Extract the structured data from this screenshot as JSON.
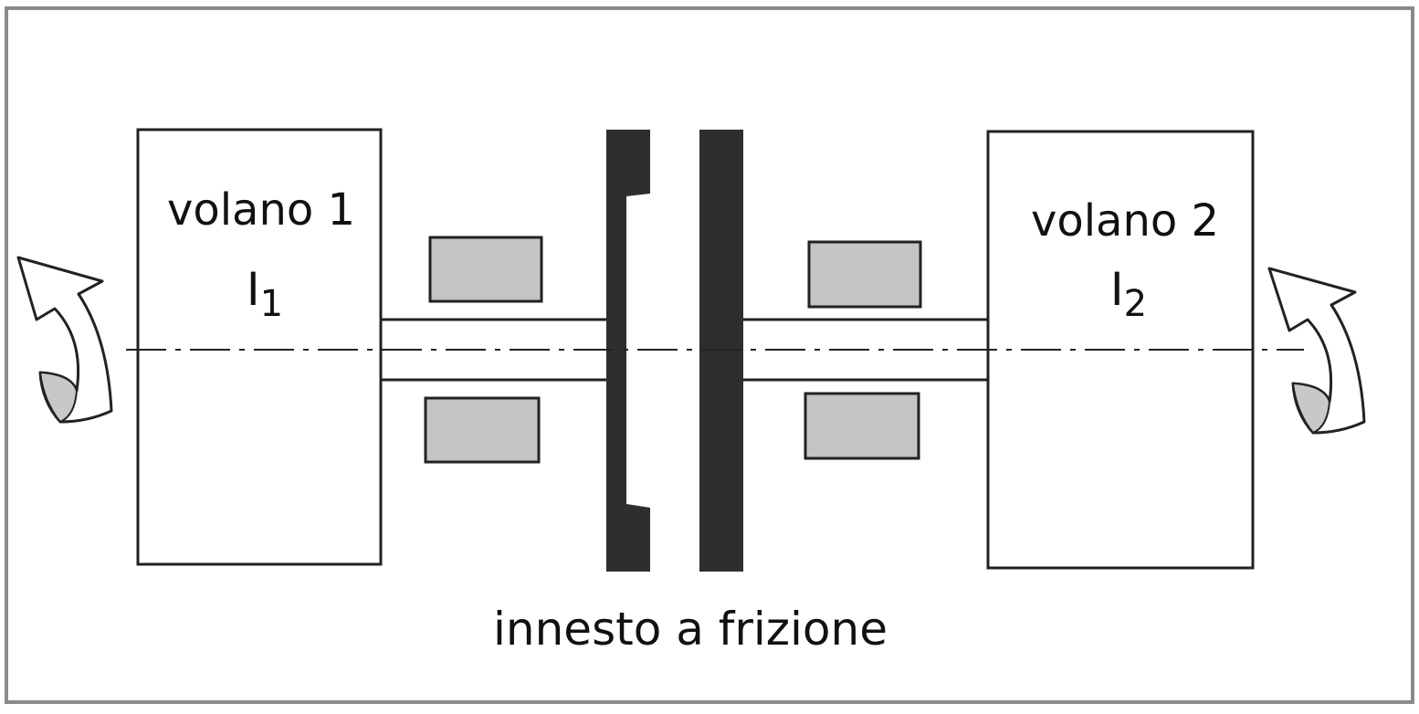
{
  "flywheel_1": {
    "label": "volano 1",
    "inertia_symbol": "I",
    "inertia_subscript": "1"
  },
  "flywheel_2": {
    "label": "volano 2",
    "inertia_symbol": "I",
    "inertia_subscript": "2"
  },
  "clutch": {
    "caption": "innesto a frizione"
  },
  "colors": {
    "frame": "#8a8a8a",
    "outline": "#222222",
    "clutch_plate": "#2e2e2e",
    "bearing_fill": "#c4c4c4",
    "arrow_fill": "#c8c8c8"
  }
}
